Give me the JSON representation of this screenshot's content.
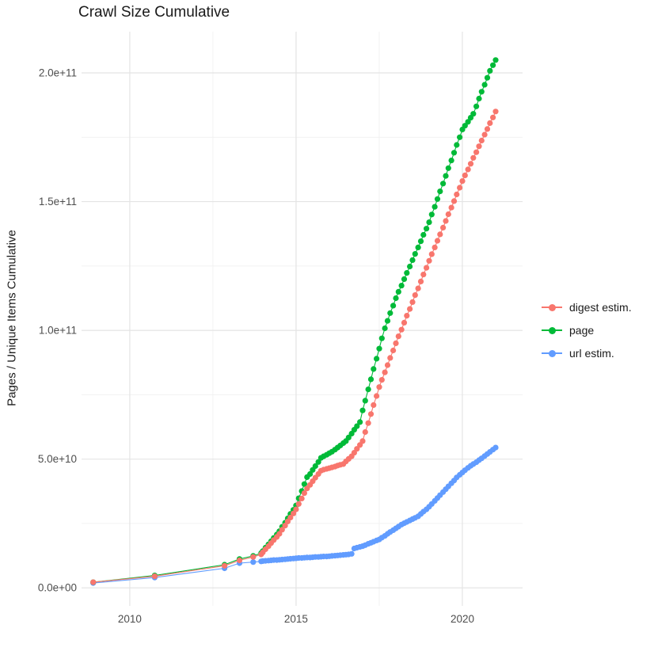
{
  "chart_data": {
    "type": "line",
    "title": "Crawl Size Cumulative",
    "xlabel": "",
    "ylabel": "Pages / Unique Items Cumulative",
    "value_unit": "items, stored as billions (1 = 1e9)",
    "xlim": [
      2008.55,
      2021.81
    ],
    "ylim": [
      -7,
      216
    ],
    "grid": "major+minor, light gray on white",
    "legend_position": "right",
    "x_ticks": [
      {
        "value": 2010,
        "label": "2010"
      },
      {
        "value": 2015,
        "label": "2015"
      },
      {
        "value": 2020,
        "label": "2020"
      }
    ],
    "x_minor_ticks": [
      2012.5,
      2017.5
    ],
    "y_ticks": [
      {
        "value": 0,
        "label": "0.0e+00"
      },
      {
        "value": 50,
        "label": "5.0e+10"
      },
      {
        "value": 100,
        "label": "1.0e+11"
      },
      {
        "value": 150,
        "label": "1.5e+11"
      },
      {
        "value": 200,
        "label": "2.0e+11"
      }
    ],
    "y_minor_ticks": [
      25,
      75,
      125,
      175
    ],
    "series": [
      {
        "name": "digest estim.",
        "color": "#F8766D",
        "points": [
          [
            2008.9,
            2.2
          ],
          [
            2010.75,
            4.5
          ],
          [
            2012.85,
            8.6
          ],
          [
            2013.3,
            10.7
          ],
          [
            2013.71,
            12.0
          ],
          [
            2013.95,
            13.0
          ],
          [
            2014.0,
            13.8
          ],
          [
            2014.08,
            15.0
          ],
          [
            2014.17,
            16.2
          ],
          [
            2014.25,
            17.4
          ],
          [
            2014.33,
            18.6
          ],
          [
            2014.42,
            19.8
          ],
          [
            2014.5,
            21.0
          ],
          [
            2014.58,
            22.6
          ],
          [
            2014.67,
            24.2
          ],
          [
            2014.75,
            25.8
          ],
          [
            2014.83,
            27.3
          ],
          [
            2014.92,
            28.9
          ],
          [
            2015.0,
            30.5
          ],
          [
            2015.08,
            32.6
          ],
          [
            2015.17,
            34.7
          ],
          [
            2015.25,
            36.8
          ],
          [
            2015.33,
            38.6
          ],
          [
            2015.42,
            40.0
          ],
          [
            2015.5,
            41.4
          ],
          [
            2015.58,
            42.8
          ],
          [
            2015.67,
            44.2
          ],
          [
            2015.75,
            45.5
          ],
          [
            2015.83,
            45.9
          ],
          [
            2015.92,
            46.2
          ],
          [
            2016.0,
            46.5
          ],
          [
            2016.08,
            46.8
          ],
          [
            2016.17,
            47.1
          ],
          [
            2016.25,
            47.5
          ],
          [
            2016.33,
            47.8
          ],
          [
            2016.42,
            48.1
          ],
          [
            2016.5,
            49.1
          ],
          [
            2016.58,
            50.1
          ],
          [
            2016.67,
            51.1
          ],
          [
            2016.75,
            52.5
          ],
          [
            2016.83,
            54.0
          ],
          [
            2016.92,
            55.5
          ],
          [
            2017.0,
            57.0
          ],
          [
            2017.08,
            60.5
          ],
          [
            2017.17,
            64.0
          ],
          [
            2017.25,
            67.5
          ],
          [
            2017.33,
            71.0
          ],
          [
            2017.42,
            74.5
          ],
          [
            2017.5,
            78.0
          ],
          [
            2017.58,
            80.8
          ],
          [
            2017.67,
            83.7
          ],
          [
            2017.75,
            86.5
          ],
          [
            2017.83,
            89.3
          ],
          [
            2017.92,
            92.2
          ],
          [
            2018.0,
            95.0
          ],
          [
            2018.08,
            97.7
          ],
          [
            2018.17,
            100.3
          ],
          [
            2018.25,
            103.0
          ],
          [
            2018.33,
            105.7
          ],
          [
            2018.42,
            108.3
          ],
          [
            2018.5,
            111.0
          ],
          [
            2018.58,
            113.7
          ],
          [
            2018.67,
            116.3
          ],
          [
            2018.75,
            119.0
          ],
          [
            2018.83,
            121.7
          ],
          [
            2018.92,
            124.3
          ],
          [
            2019.0,
            127.0
          ],
          [
            2019.08,
            129.6
          ],
          [
            2019.17,
            132.2
          ],
          [
            2019.25,
            134.8
          ],
          [
            2019.33,
            137.3
          ],
          [
            2019.42,
            139.9
          ],
          [
            2019.5,
            142.5
          ],
          [
            2019.58,
            145.1
          ],
          [
            2019.67,
            147.7
          ],
          [
            2019.75,
            150.2
          ],
          [
            2019.83,
            152.8
          ],
          [
            2019.92,
            155.4
          ],
          [
            2020.0,
            158.0
          ],
          [
            2020.08,
            160.2
          ],
          [
            2020.17,
            162.5
          ],
          [
            2020.25,
            164.7
          ],
          [
            2020.33,
            167.0
          ],
          [
            2020.42,
            169.2
          ],
          [
            2020.5,
            171.5
          ],
          [
            2020.58,
            173.7
          ],
          [
            2020.67,
            176.0
          ],
          [
            2020.75,
            178.2
          ],
          [
            2020.83,
            180.5
          ],
          [
            2020.92,
            182.7
          ],
          [
            2021.0,
            185.0
          ]
        ]
      },
      {
        "name": "page",
        "color": "#00BA38",
        "points": [
          [
            2008.9,
            2.2
          ],
          [
            2010.75,
            4.8
          ],
          [
            2012.85,
            9.0
          ],
          [
            2013.3,
            11.2
          ],
          [
            2013.71,
            12.4
          ],
          [
            2013.95,
            13.5
          ],
          [
            2014.0,
            14.3
          ],
          [
            2014.08,
            15.6
          ],
          [
            2014.17,
            16.9
          ],
          [
            2014.25,
            18.1
          ],
          [
            2014.33,
            19.4
          ],
          [
            2014.42,
            20.7
          ],
          [
            2014.5,
            22.0
          ],
          [
            2014.58,
            23.7
          ],
          [
            2014.67,
            25.3
          ],
          [
            2014.75,
            27.0
          ],
          [
            2014.83,
            28.7
          ],
          [
            2014.92,
            30.3
          ],
          [
            2015.0,
            32.0
          ],
          [
            2015.08,
            34.8
          ],
          [
            2015.17,
            37.6
          ],
          [
            2015.25,
            40.3
          ],
          [
            2015.33,
            43.0
          ],
          [
            2015.42,
            44.2
          ],
          [
            2015.5,
            45.8
          ],
          [
            2015.58,
            47.3
          ],
          [
            2015.67,
            48.9
          ],
          [
            2015.75,
            50.5
          ],
          [
            2015.83,
            51.1
          ],
          [
            2015.92,
            51.7
          ],
          [
            2016.0,
            52.3
          ],
          [
            2016.08,
            52.9
          ],
          [
            2016.17,
            53.7
          ],
          [
            2016.25,
            54.5
          ],
          [
            2016.33,
            55.3
          ],
          [
            2016.42,
            56.2
          ],
          [
            2016.5,
            57.0
          ],
          [
            2016.58,
            58.4
          ],
          [
            2016.67,
            59.9
          ],
          [
            2016.75,
            61.4
          ],
          [
            2016.83,
            62.8
          ],
          [
            2016.92,
            64.4
          ],
          [
            2017.0,
            68.9
          ],
          [
            2017.08,
            72.7
          ],
          [
            2017.17,
            77.1
          ],
          [
            2017.25,
            81.0
          ],
          [
            2017.33,
            85.0
          ],
          [
            2017.42,
            89.0
          ],
          [
            2017.5,
            92.9
          ],
          [
            2017.58,
            96.9
          ],
          [
            2017.67,
            100.8
          ],
          [
            2017.75,
            103.7
          ],
          [
            2017.83,
            106.7
          ],
          [
            2017.92,
            109.6
          ],
          [
            2018.0,
            112.5
          ],
          [
            2018.08,
            115.0
          ],
          [
            2018.17,
            117.4
          ],
          [
            2018.25,
            119.9
          ],
          [
            2018.33,
            122.3
          ],
          [
            2018.42,
            124.8
          ],
          [
            2018.5,
            127.3
          ],
          [
            2018.58,
            129.7
          ],
          [
            2018.67,
            132.2
          ],
          [
            2018.75,
            134.6
          ],
          [
            2018.83,
            137.1
          ],
          [
            2018.92,
            139.5
          ],
          [
            2019.0,
            142.0
          ],
          [
            2019.08,
            145.0
          ],
          [
            2019.17,
            148.0
          ],
          [
            2019.25,
            151.0
          ],
          [
            2019.33,
            154.0
          ],
          [
            2019.42,
            157.0
          ],
          [
            2019.5,
            160.0
          ],
          [
            2019.58,
            163.0
          ],
          [
            2019.67,
            166.0
          ],
          [
            2019.75,
            169.0
          ],
          [
            2019.83,
            172.0
          ],
          [
            2019.92,
            175.0
          ],
          [
            2020.0,
            178.0
          ],
          [
            2020.08,
            179.5
          ],
          [
            2020.17,
            181.0
          ],
          [
            2020.25,
            182.6
          ],
          [
            2020.33,
            184.1
          ],
          [
            2020.42,
            187.0
          ],
          [
            2020.5,
            190.0
          ],
          [
            2020.58,
            192.7
          ],
          [
            2020.67,
            195.4
          ],
          [
            2020.75,
            198.1
          ],
          [
            2020.83,
            200.8
          ],
          [
            2020.92,
            203.0
          ],
          [
            2021.0,
            205.0
          ]
        ]
      },
      {
        "name": "url estim.",
        "color": "#619CFF",
        "points": [
          [
            2008.9,
            1.9
          ],
          [
            2010.75,
            4.0
          ],
          [
            2012.85,
            7.6
          ],
          [
            2013.3,
            9.6
          ],
          [
            2013.71,
            10.0
          ],
          [
            2013.95,
            10.3
          ],
          [
            2014.0,
            10.4
          ],
          [
            2014.08,
            10.5
          ],
          [
            2014.17,
            10.6
          ],
          [
            2014.25,
            10.7
          ],
          [
            2014.33,
            10.8
          ],
          [
            2014.42,
            10.8
          ],
          [
            2014.5,
            10.9
          ],
          [
            2014.58,
            11.0
          ],
          [
            2014.67,
            11.1
          ],
          [
            2014.75,
            11.2
          ],
          [
            2014.83,
            11.3
          ],
          [
            2014.92,
            11.4
          ],
          [
            2015.0,
            11.5
          ],
          [
            2015.08,
            11.6
          ],
          [
            2015.17,
            11.6
          ],
          [
            2015.25,
            11.7
          ],
          [
            2015.33,
            11.8
          ],
          [
            2015.42,
            11.8
          ],
          [
            2015.5,
            11.9
          ],
          [
            2015.58,
            12.0
          ],
          [
            2015.67,
            12.0
          ],
          [
            2015.75,
            12.1
          ],
          [
            2015.83,
            12.2
          ],
          [
            2015.92,
            12.2
          ],
          [
            2016.0,
            12.3
          ],
          [
            2016.08,
            12.4
          ],
          [
            2016.17,
            12.5
          ],
          [
            2016.25,
            12.6
          ],
          [
            2016.33,
            12.7
          ],
          [
            2016.42,
            12.8
          ],
          [
            2016.5,
            12.9
          ],
          [
            2016.58,
            13.0
          ],
          [
            2016.67,
            13.2
          ],
          [
            2016.75,
            15.3
          ],
          [
            2016.83,
            15.6
          ],
          [
            2016.92,
            15.9
          ],
          [
            2017.0,
            16.2
          ],
          [
            2017.08,
            16.6
          ],
          [
            2017.17,
            17.1
          ],
          [
            2017.25,
            17.5
          ],
          [
            2017.33,
            17.9
          ],
          [
            2017.42,
            18.4
          ],
          [
            2017.5,
            18.8
          ],
          [
            2017.58,
            19.5
          ],
          [
            2017.67,
            20.2
          ],
          [
            2017.75,
            21.0
          ],
          [
            2017.83,
            21.7
          ],
          [
            2017.92,
            22.4
          ],
          [
            2018.0,
            23.1
          ],
          [
            2018.08,
            23.8
          ],
          [
            2018.17,
            24.6
          ],
          [
            2018.25,
            25.1
          ],
          [
            2018.33,
            25.6
          ],
          [
            2018.42,
            26.2
          ],
          [
            2018.5,
            26.7
          ],
          [
            2018.58,
            27.2
          ],
          [
            2018.67,
            27.8
          ],
          [
            2018.75,
            28.7
          ],
          [
            2018.83,
            29.6
          ],
          [
            2018.92,
            30.5
          ],
          [
            2019.0,
            31.5
          ],
          [
            2019.08,
            32.6
          ],
          [
            2019.17,
            33.8
          ],
          [
            2019.25,
            34.9
          ],
          [
            2019.33,
            36.0
          ],
          [
            2019.42,
            37.2
          ],
          [
            2019.5,
            38.3
          ],
          [
            2019.58,
            39.4
          ],
          [
            2019.67,
            40.6
          ],
          [
            2019.75,
            41.7
          ],
          [
            2019.83,
            42.9
          ],
          [
            2019.92,
            43.9
          ],
          [
            2020.0,
            44.8
          ],
          [
            2020.08,
            45.7
          ],
          [
            2020.17,
            46.6
          ],
          [
            2020.25,
            47.4
          ],
          [
            2020.33,
            48.1
          ],
          [
            2020.42,
            48.8
          ],
          [
            2020.5,
            49.6
          ],
          [
            2020.58,
            50.3
          ],
          [
            2020.67,
            51.2
          ],
          [
            2020.75,
            52.0
          ],
          [
            2020.83,
            52.8
          ],
          [
            2020.92,
            53.7
          ],
          [
            2021.0,
            54.5
          ]
        ]
      }
    ],
    "style": {
      "grid_major_color": "#e4e4e4",
      "grid_minor_color": "#f0f0f0",
      "tick_text_color": "#4d4d4d",
      "text_color": "#1a1a1a",
      "background": "#ffffff"
    }
  }
}
